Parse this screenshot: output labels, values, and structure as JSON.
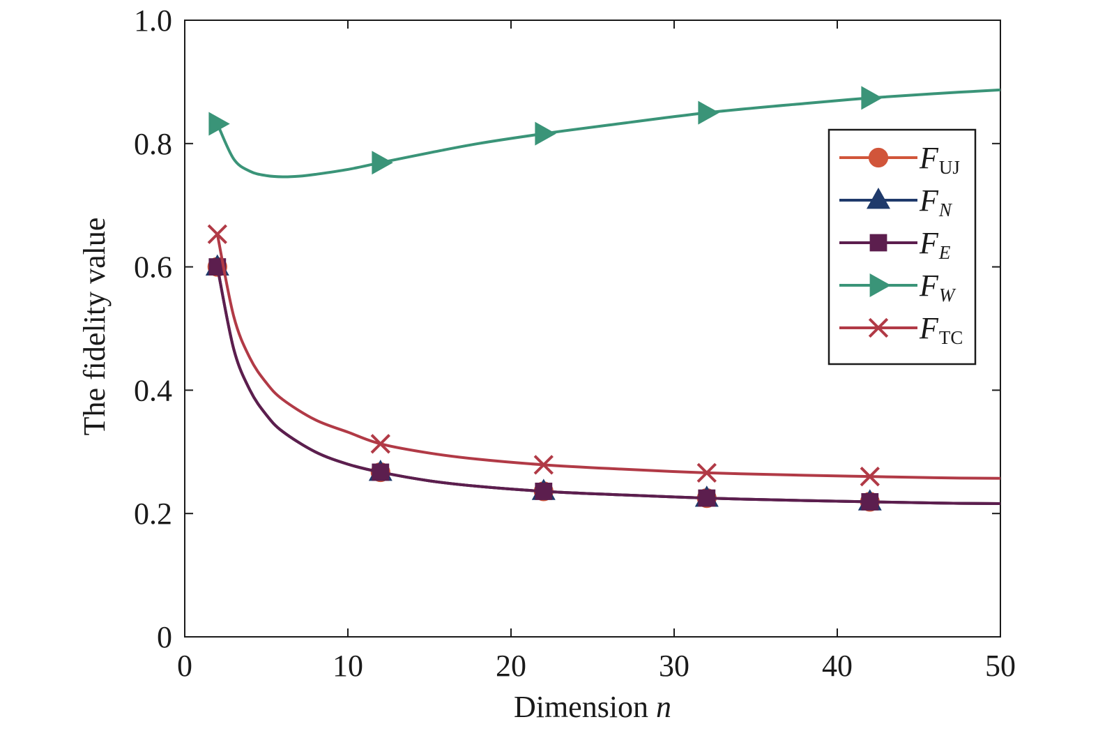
{
  "chart_data": {
    "type": "line",
    "title": "",
    "xlabel": "Dimension",
    "xlabel_var": "n",
    "ylabel": "The fidelity value",
    "xlim": [
      0,
      50
    ],
    "ylim": [
      0,
      1.0
    ],
    "xticks": [
      0,
      10,
      20,
      30,
      40,
      50
    ],
    "xtick_labels": [
      "0",
      "10",
      "20",
      "30",
      "40",
      "50"
    ],
    "yticks": [
      0,
      0.2,
      0.4,
      0.6,
      0.8,
      1.0
    ],
    "ytick_labels": [
      "0",
      "0.2",
      "0.4",
      "0.6",
      "0.8",
      "1.0"
    ],
    "grid": false,
    "legend_position": "upper-right",
    "series": [
      {
        "name": "F",
        "subscript": "UJ",
        "subscript_italic": false,
        "color": "#d1553a",
        "marker": "circle",
        "x": [
          2,
          3,
          4,
          5,
          6,
          8,
          10,
          12,
          15,
          18,
          22,
          26,
          32,
          38,
          42,
          46,
          50
        ],
        "y": [
          0.6,
          0.467,
          0.4,
          0.36,
          0.333,
          0.3,
          0.28,
          0.267,
          0.253,
          0.244,
          0.236,
          0.231,
          0.225,
          0.221,
          0.219,
          0.217,
          0.216
        ],
        "marker_x": [
          2,
          12,
          22,
          32,
          42
        ]
      },
      {
        "name": "F",
        "subscript": "N",
        "subscript_italic": true,
        "color": "#1f3a6b",
        "marker": "triangle",
        "x": [
          2,
          3,
          4,
          5,
          6,
          8,
          10,
          12,
          15,
          18,
          22,
          26,
          32,
          38,
          42,
          46,
          50
        ],
        "y": [
          0.6,
          0.467,
          0.4,
          0.36,
          0.333,
          0.3,
          0.28,
          0.267,
          0.253,
          0.244,
          0.236,
          0.231,
          0.225,
          0.221,
          0.219,
          0.217,
          0.216
        ],
        "marker_x": [
          2,
          12,
          22,
          32,
          42
        ]
      },
      {
        "name": "F",
        "subscript": "E",
        "subscript_italic": true,
        "color": "#5c1e4e",
        "marker": "square",
        "x": [
          2,
          3,
          4,
          5,
          6,
          8,
          10,
          12,
          15,
          18,
          22,
          26,
          32,
          38,
          42,
          46,
          50
        ],
        "y": [
          0.6,
          0.467,
          0.4,
          0.36,
          0.333,
          0.3,
          0.28,
          0.267,
          0.253,
          0.244,
          0.236,
          0.231,
          0.225,
          0.221,
          0.219,
          0.217,
          0.216
        ],
        "marker_x": [
          2,
          12,
          22,
          32,
          42
        ]
      },
      {
        "name": "F",
        "subscript": "W",
        "subscript_italic": true,
        "color": "#3a9478",
        "marker": "triangle-right",
        "x": [
          2,
          3,
          4,
          5,
          6,
          7,
          8,
          10,
          12,
          15,
          18,
          22,
          26,
          32,
          38,
          42,
          46,
          50
        ],
        "y": [
          0.832,
          0.775,
          0.755,
          0.748,
          0.746,
          0.747,
          0.75,
          0.758,
          0.769,
          0.785,
          0.8,
          0.816,
          0.83,
          0.85,
          0.865,
          0.874,
          0.881,
          0.887
        ],
        "marker_x": [
          2,
          12,
          22,
          32,
          42
        ],
        "marker_y": [
          0.832,
          0.769,
          0.816,
          0.85,
          0.874
        ]
      },
      {
        "name": "F",
        "subscript": "TC",
        "subscript_italic": false,
        "color": "#b13a46",
        "marker": "x",
        "x": [
          2,
          3,
          4,
          5,
          6,
          8,
          10,
          12,
          15,
          18,
          22,
          26,
          32,
          38,
          42,
          46,
          50
        ],
        "y": [
          0.653,
          0.52,
          0.452,
          0.412,
          0.385,
          0.352,
          0.332,
          0.313,
          0.298,
          0.288,
          0.279,
          0.273,
          0.266,
          0.262,
          0.26,
          0.258,
          0.257
        ],
        "marker_x": [
          2,
          12,
          22,
          32,
          42
        ]
      }
    ]
  }
}
